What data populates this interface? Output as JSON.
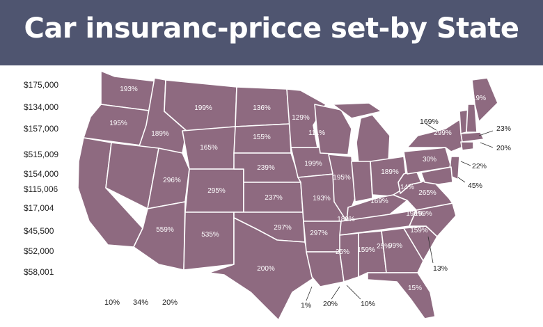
{
  "title": "Car insuranc-pricce set-by State",
  "colors": {
    "header_bg": "#4f5570",
    "map_fill": "#8e6a80",
    "borders": "#ffffff"
  },
  "scale_labels": [
    "$175,000",
    "$134,000",
    "$157,000",
    "$515,009",
    "$154,000",
    "$115,006",
    "$17,004",
    "$45,500",
    "$52,000",
    "$58,001"
  ],
  "state_labels": [
    "193%",
    "195%",
    "189%",
    "199%",
    "136%",
    "155%",
    "165%",
    "129%",
    "111%",
    "199%",
    "239%",
    "296%",
    "295%",
    "237%",
    "195%",
    "193%",
    "297%",
    "559%",
    "535%",
    "297%",
    "25%",
    "200%",
    "189%",
    "169%",
    "14%",
    "199%",
    "30%",
    "299%",
    "19%",
    "25%",
    "159%",
    "99%",
    "159%",
    "15%",
    "189%",
    "199%",
    "265%"
  ],
  "external_labels": [
    "169%",
    "23%",
    "20%",
    "22%",
    "45%",
    "13%",
    "1%",
    "20%",
    "10%"
  ],
  "legend": [
    "10%",
    "34%",
    "20%"
  ]
}
